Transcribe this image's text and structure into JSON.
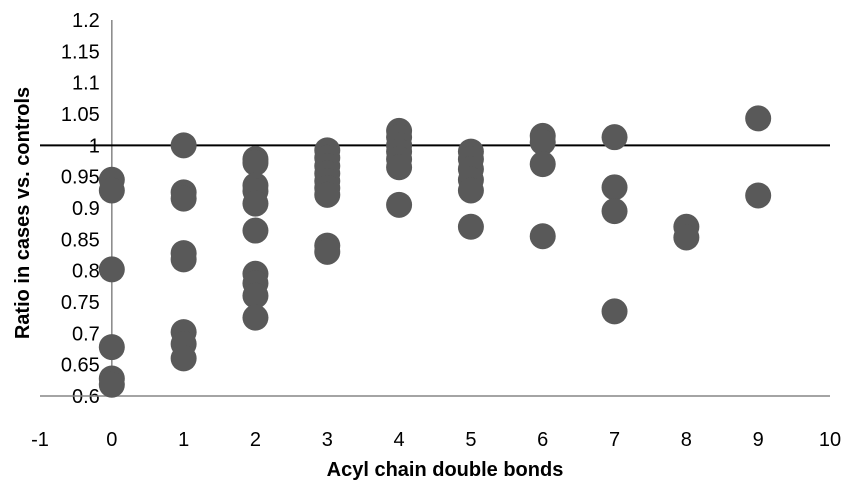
{
  "chart_data": {
    "type": "scatter",
    "title": "",
    "xlabel": "Acyl chain double bonds",
    "ylabel": "Ratio in cases vs. controls",
    "xlim": [
      -1,
      10
    ],
    "ylim": [
      0.6,
      1.2
    ],
    "x_ticks": [
      "-1",
      "0",
      "1",
      "2",
      "3",
      "4",
      "5",
      "6",
      "7",
      "8",
      "9",
      "10"
    ],
    "y_ticks": [
      "0.6",
      "0.65",
      "0.7",
      "0.75",
      "0.8",
      "0.85",
      "0.9",
      "0.95",
      "1",
      "1.05",
      "1.1",
      "1.15",
      "1.2"
    ],
    "reference_line_y": 1,
    "grid": false,
    "legend": "none",
    "marker_color": "#595959",
    "points": [
      {
        "x": 0,
        "y": 0.945
      },
      {
        "x": 0,
        "y": 0.928
      },
      {
        "x": 0,
        "y": 0.802
      },
      {
        "x": 0,
        "y": 0.678
      },
      {
        "x": 0,
        "y": 0.628
      },
      {
        "x": 0,
        "y": 0.618
      },
      {
        "x": 1,
        "y": 1.0
      },
      {
        "x": 1,
        "y": 0.925
      },
      {
        "x": 1,
        "y": 0.915
      },
      {
        "x": 1,
        "y": 0.828
      },
      {
        "x": 1,
        "y": 0.818
      },
      {
        "x": 1,
        "y": 0.702
      },
      {
        "x": 1,
        "y": 0.683
      },
      {
        "x": 1,
        "y": 0.66
      },
      {
        "x": 2,
        "y": 0.978
      },
      {
        "x": 2,
        "y": 0.972
      },
      {
        "x": 2,
        "y": 0.936
      },
      {
        "x": 2,
        "y": 0.927
      },
      {
        "x": 2,
        "y": 0.907
      },
      {
        "x": 2,
        "y": 0.864
      },
      {
        "x": 2,
        "y": 0.795
      },
      {
        "x": 2,
        "y": 0.78
      },
      {
        "x": 2,
        "y": 0.76
      },
      {
        "x": 2,
        "y": 0.725
      },
      {
        "x": 3,
        "y": 0.992
      },
      {
        "x": 3,
        "y": 0.98
      },
      {
        "x": 3,
        "y": 0.967
      },
      {
        "x": 3,
        "y": 0.955
      },
      {
        "x": 3,
        "y": 0.943
      },
      {
        "x": 3,
        "y": 0.932
      },
      {
        "x": 3,
        "y": 0.921
      },
      {
        "x": 3,
        "y": 0.84
      },
      {
        "x": 3,
        "y": 0.83
      },
      {
        "x": 4,
        "y": 1.023
      },
      {
        "x": 4,
        "y": 1.013
      },
      {
        "x": 4,
        "y": 1.0
      },
      {
        "x": 4,
        "y": 0.99
      },
      {
        "x": 4,
        "y": 0.978
      },
      {
        "x": 4,
        "y": 0.965
      },
      {
        "x": 4,
        "y": 0.905
      },
      {
        "x": 5,
        "y": 0.99
      },
      {
        "x": 5,
        "y": 0.978
      },
      {
        "x": 5,
        "y": 0.962
      },
      {
        "x": 5,
        "y": 0.945
      },
      {
        "x": 5,
        "y": 0.928
      },
      {
        "x": 5,
        "y": 0.87
      },
      {
        "x": 6,
        "y": 1.015
      },
      {
        "x": 6,
        "y": 1.005
      },
      {
        "x": 6,
        "y": 0.97
      },
      {
        "x": 6,
        "y": 0.855
      },
      {
        "x": 7,
        "y": 1.013
      },
      {
        "x": 7,
        "y": 0.933
      },
      {
        "x": 7,
        "y": 0.895
      },
      {
        "x": 7,
        "y": 0.735
      },
      {
        "x": 8,
        "y": 0.87
      },
      {
        "x": 8,
        "y": 0.853
      },
      {
        "x": 9,
        "y": 1.043
      },
      {
        "x": 9,
        "y": 0.92
      }
    ]
  }
}
